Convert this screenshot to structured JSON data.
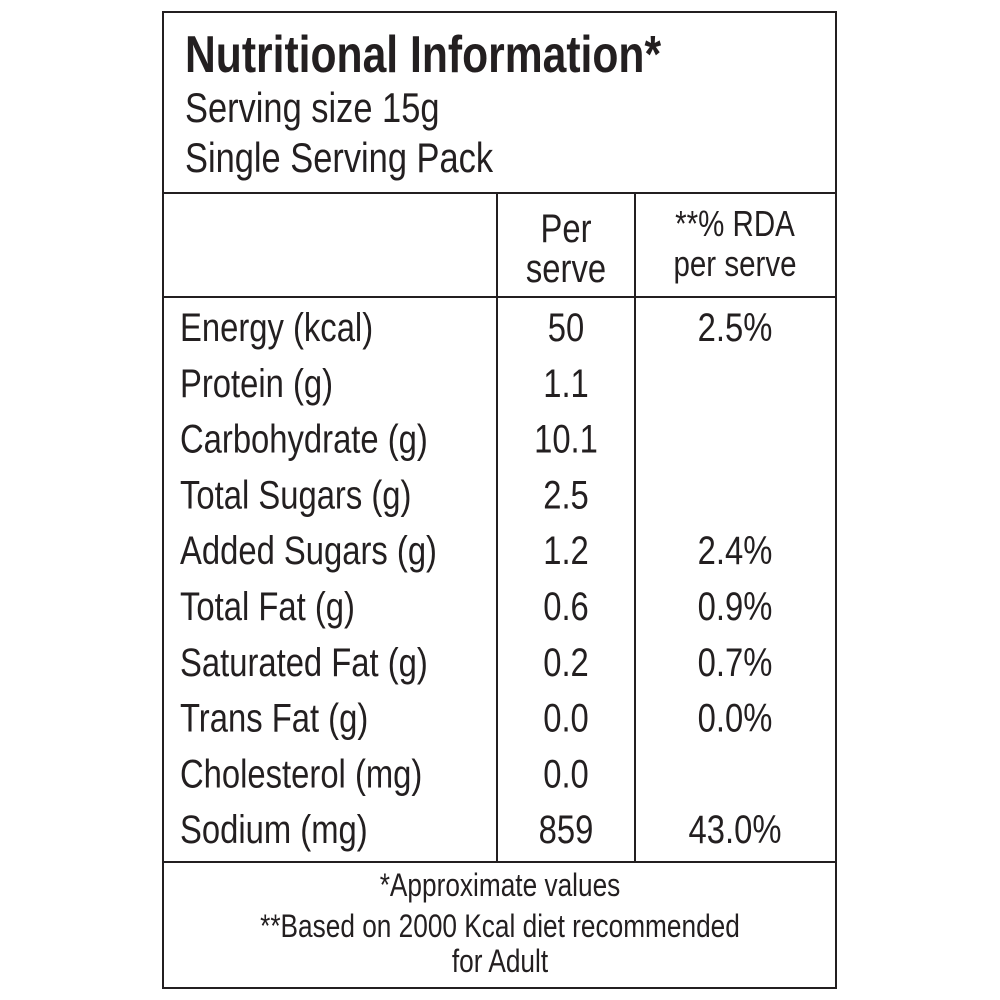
{
  "header": {
    "title": "Nutritional Information*",
    "serving_size": "Serving size 15g",
    "pack": "Single Serving Pack"
  },
  "table": {
    "column_headers": [
      [
        "Per",
        "serve"
      ],
      [
        "**% RDA",
        "per serve"
      ]
    ],
    "rows": [
      [
        "Energy (kcal)",
        "50",
        "2.5%"
      ],
      [
        "Protein (g)",
        "1.1"
      ],
      [
        "Carbohydrate (g)",
        "10.1"
      ],
      [
        "Total Sugars (g)",
        "2.5"
      ],
      [
        "Added Sugars (g)",
        "1.2",
        "2.4%"
      ],
      [
        "Total Fat (g)",
        "0.6",
        "0.9%"
      ],
      [
        "Saturated Fat (g)",
        "0.2",
        "0.7%"
      ],
      [
        "Trans Fat (g)",
        "0.0",
        "0.0%"
      ],
      [
        "Cholesterol (mg)",
        "0.0"
      ],
      [
        "Sodium (mg)",
        "859",
        "43.0%"
      ]
    ]
  },
  "footer": [
    "*Approximate values",
    "**Based on 2000 Kcal diet recommended",
    "for Adult"
  ]
}
